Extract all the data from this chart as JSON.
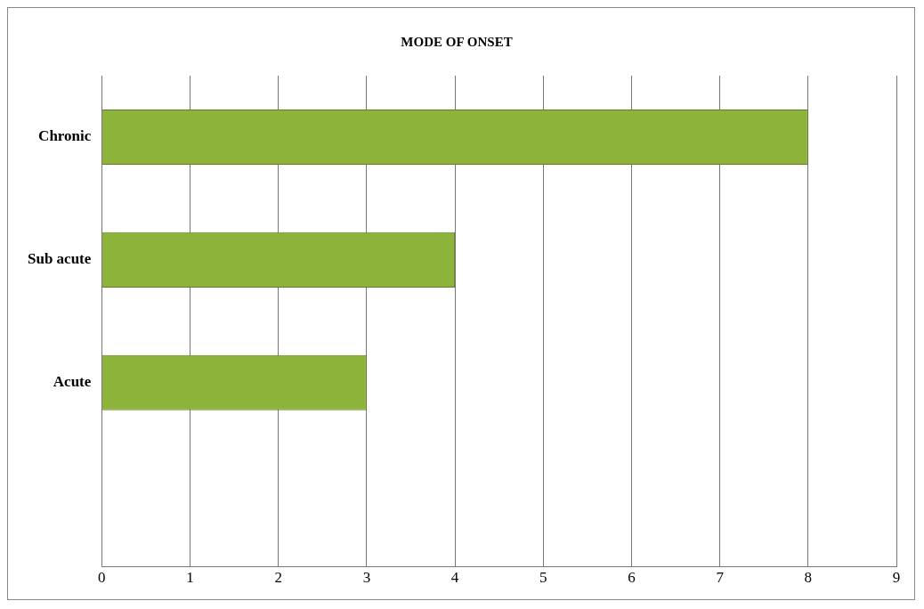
{
  "chart_data": {
    "type": "bar",
    "orientation": "horizontal",
    "title": "MODE OF ONSET",
    "categories": [
      "Chronic",
      "Sub acute",
      "Acute",
      null
    ],
    "values": [
      8,
      4,
      3,
      null
    ],
    "color": "#8db33a",
    "xlim": [
      0,
      9
    ],
    "xticks": [
      0,
      1,
      2,
      3,
      4,
      5,
      6,
      7,
      8,
      9
    ],
    "grid": "x",
    "legend": false
  }
}
